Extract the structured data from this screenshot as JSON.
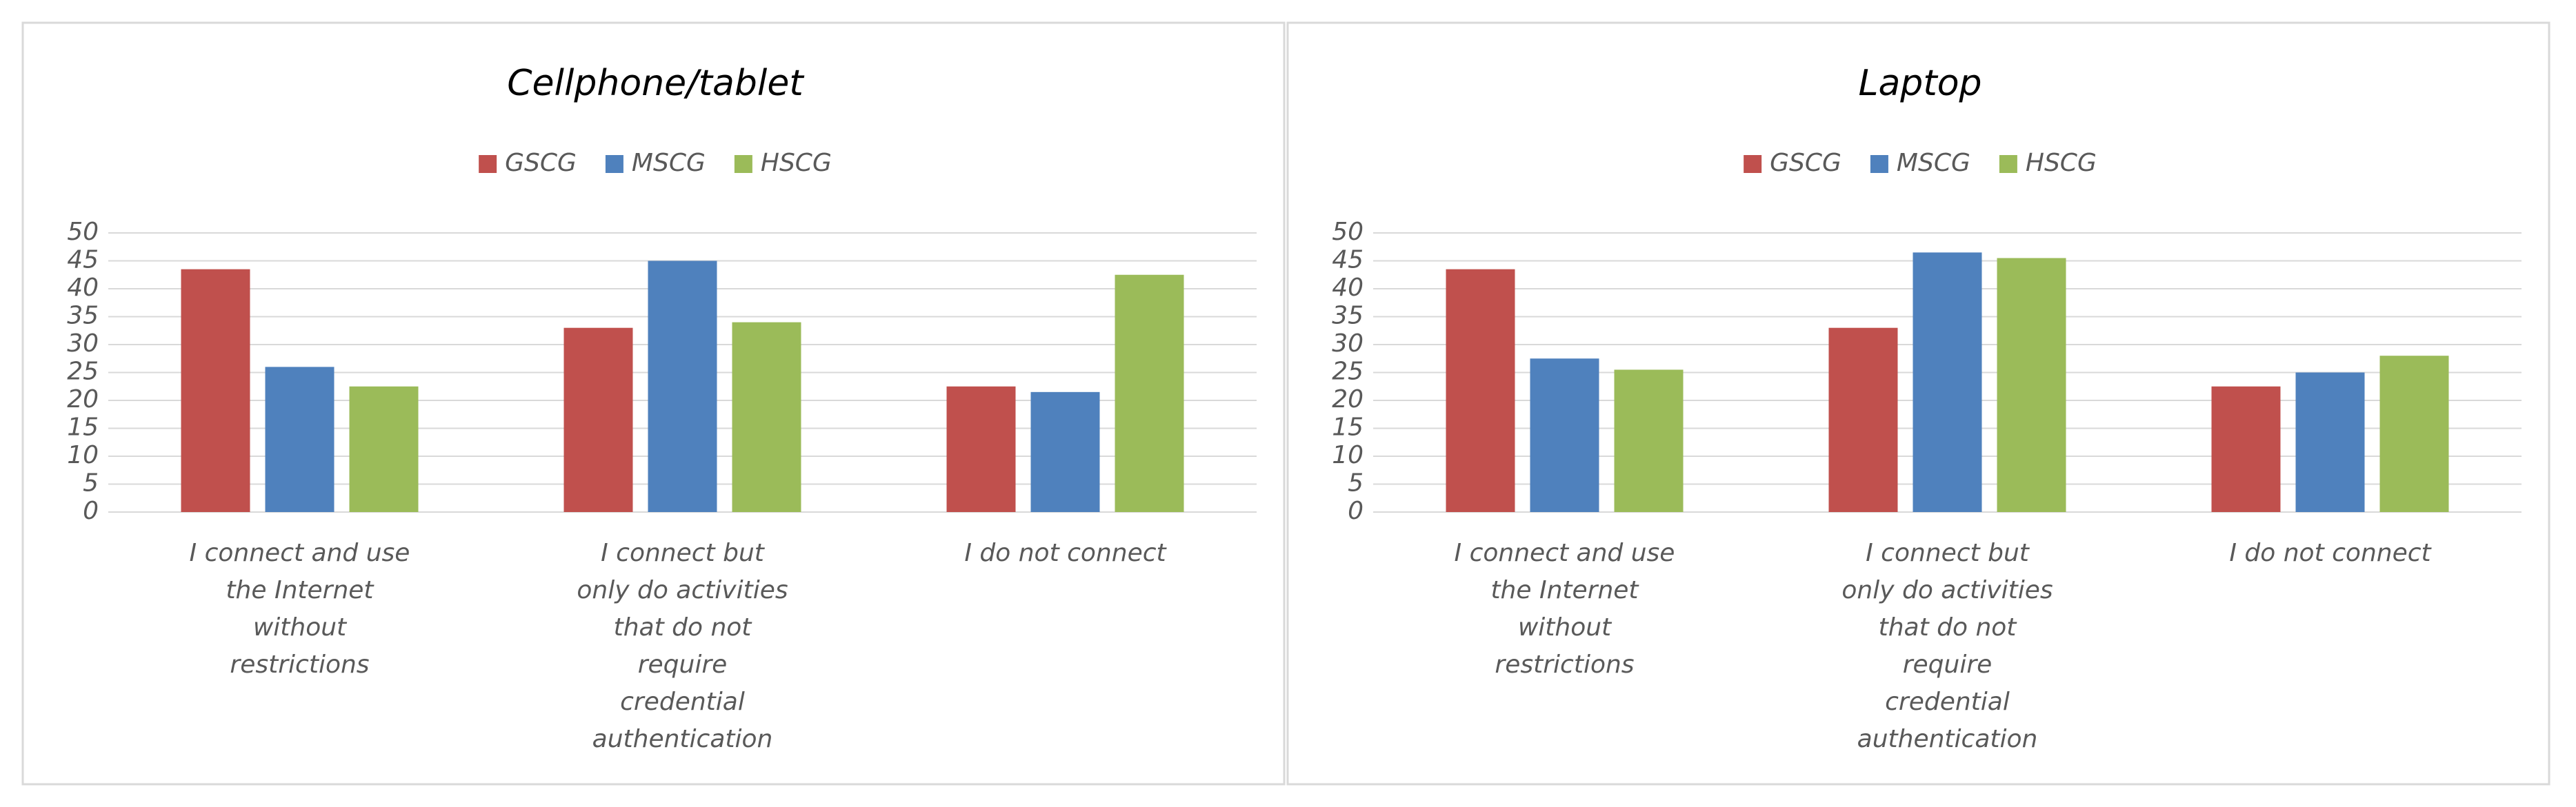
{
  "chart_data": [
    {
      "type": "bar",
      "title": "Cellphone/tablet",
      "categories": [
        "I connect and use the Internet without restrictions",
        "I connect but only do activities that do not require credential authentication",
        "I do not connect"
      ],
      "series": [
        {
          "name": "GSCG",
          "color": "#c0504d",
          "values": [
            43.5,
            33,
            22.5
          ]
        },
        {
          "name": "MSCG",
          "color": "#4f81bd",
          "values": [
            26,
            45,
            21.5
          ]
        },
        {
          "name": "HSCG",
          "color": "#9bbb59",
          "values": [
            22.5,
            34,
            42.5
          ]
        }
      ],
      "ylim": [
        0,
        50
      ],
      "yticks": [
        0,
        5,
        10,
        15,
        20,
        25,
        30,
        35,
        40,
        45,
        50
      ],
      "grid": true,
      "legend": "top"
    },
    {
      "type": "bar",
      "title": "Laptop",
      "categories": [
        "I connect and use the Internet without restrictions",
        "I connect but only do activities that do not require credential authentication",
        "I do not connect"
      ],
      "series": [
        {
          "name": "GSCG",
          "color": "#c0504d",
          "values": [
            43.5,
            33,
            22.5
          ]
        },
        {
          "name": "MSCG",
          "color": "#4f81bd",
          "values": [
            27.5,
            46.5,
            25
          ]
        },
        {
          "name": "HSCG",
          "color": "#9bbb59",
          "values": [
            25.5,
            45.5,
            28
          ]
        }
      ],
      "ylim": [
        0,
        50
      ],
      "yticks": [
        0,
        5,
        10,
        15,
        20,
        25,
        30,
        35,
        40,
        45,
        50
      ],
      "grid": true,
      "legend": "top"
    }
  ]
}
